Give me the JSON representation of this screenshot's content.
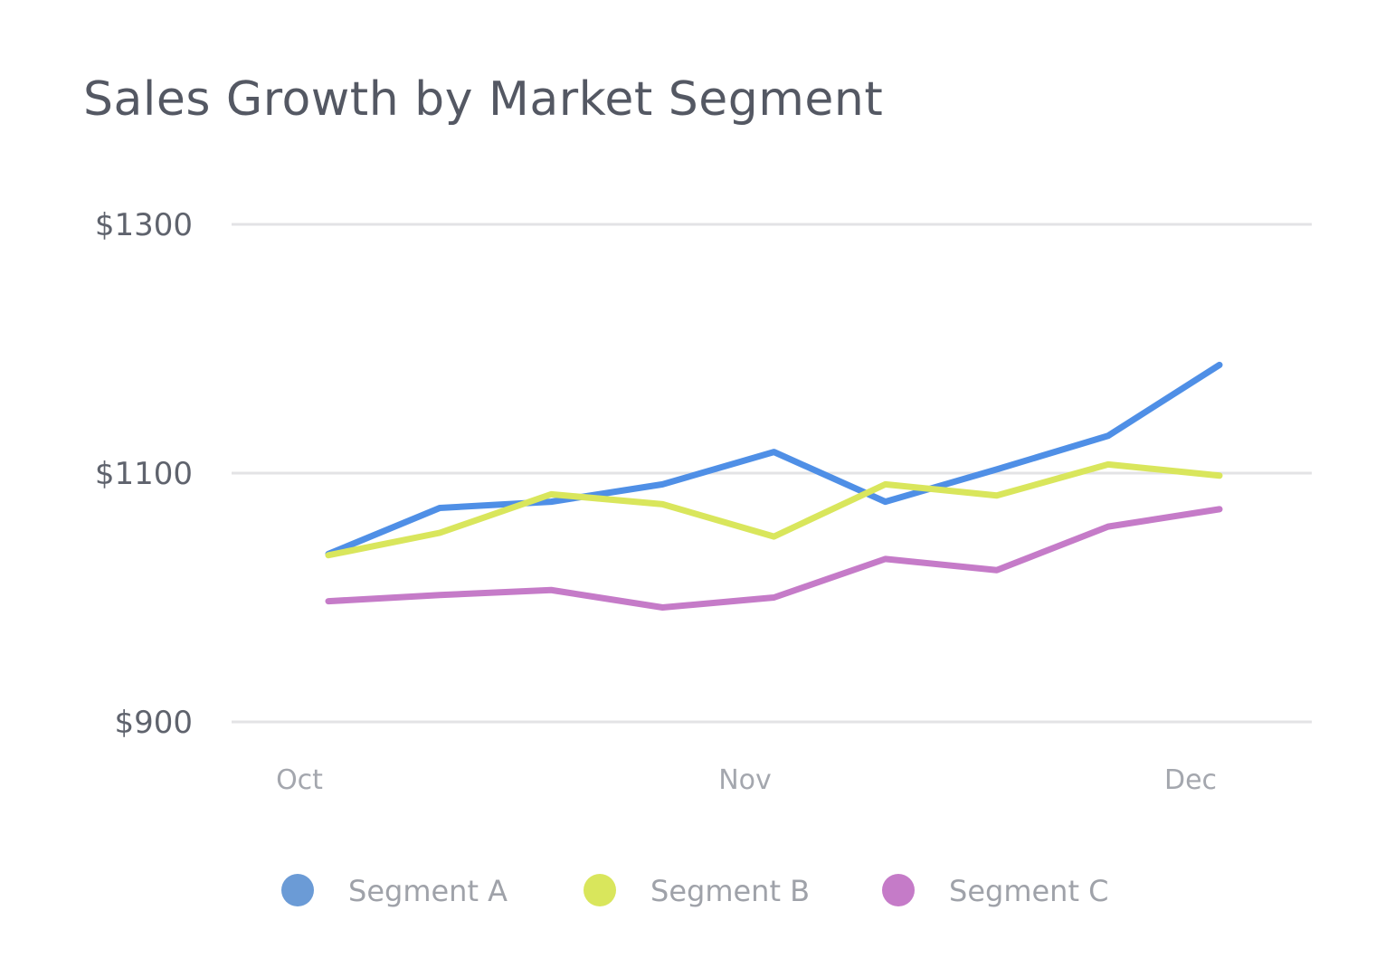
{
  "chart_data": {
    "type": "line",
    "title": "Sales Growth by Market Segment",
    "xlabel": "",
    "ylabel": "",
    "ylim": [
      900,
      1300
    ],
    "yticks": [
      900,
      1100,
      1300
    ],
    "ytick_labels": [
      "$900",
      "$1100",
      "$1300"
    ],
    "x_tick_labels": [
      "Oct",
      "Nov",
      "Dec"
    ],
    "x_tick_indices": [
      0,
      4,
      8
    ],
    "grid": true,
    "legend_position": "bottom",
    "series": [
      {
        "name": "Segment A",
        "color": "#4f8fe6",
        "legend_color": "#6b9bd6",
        "values": [
          1035,
          1072,
          1077,
          1091,
          1117,
          1077,
          1103,
          1130,
          1187
        ]
      },
      {
        "name": "Segment B",
        "color": "#d9e65c",
        "legend_color": "#d9e65c",
        "values": [
          1034,
          1052,
          1083,
          1075,
          1049,
          1091,
          1082,
          1107,
          1098
        ]
      },
      {
        "name": "Segment C",
        "color": "#c57bc8",
        "legend_color": "#c57bc8",
        "values": [
          997,
          1002,
          1006,
          992,
          1000,
          1031,
          1022,
          1057,
          1071
        ]
      }
    ]
  }
}
